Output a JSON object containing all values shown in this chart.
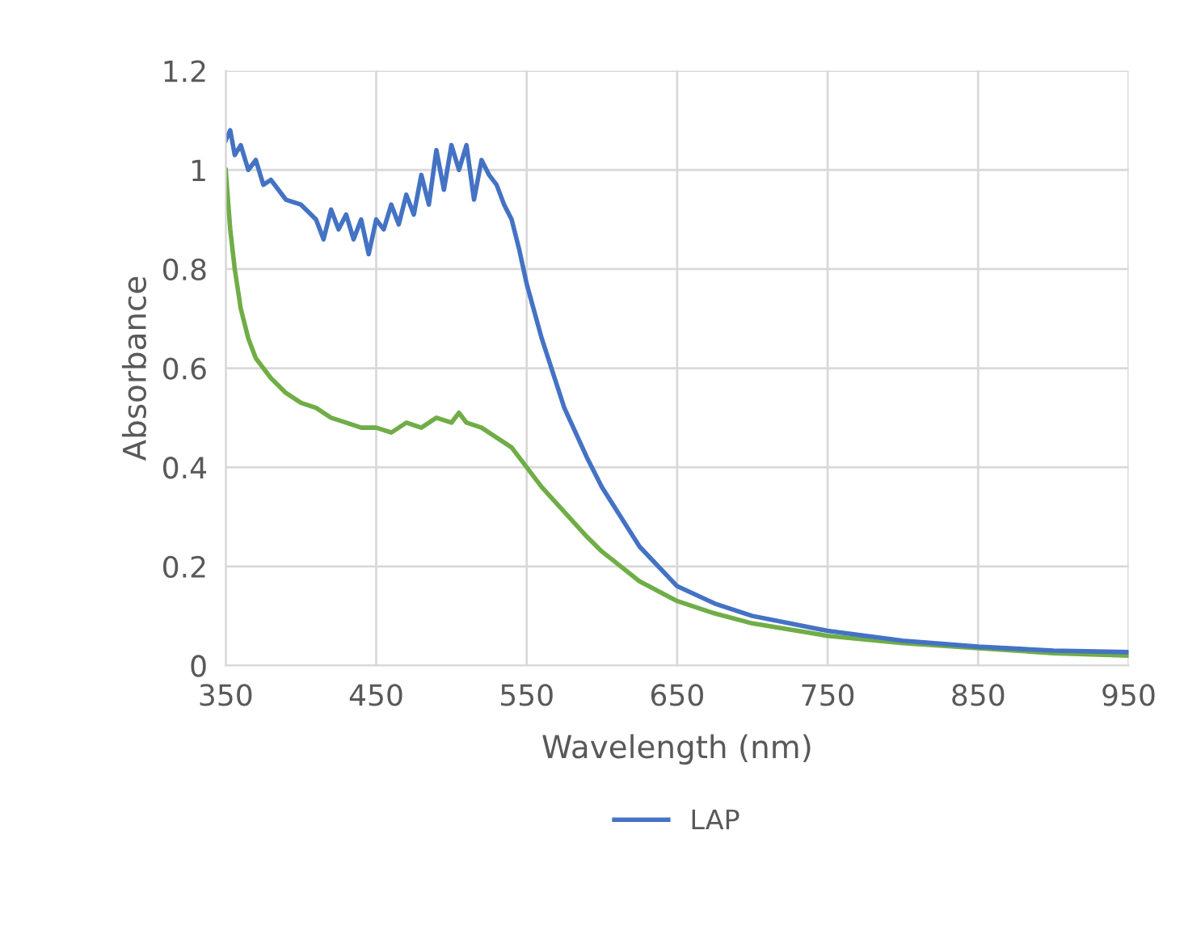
{
  "chart_data": {
    "type": "line",
    "xlabel": "Wavelength (nm)",
    "ylabel": "Absorbance",
    "xlim": [
      350,
      950
    ],
    "xticks": [
      350,
      450,
      550,
      650,
      750,
      850,
      950
    ],
    "ylim": [
      0,
      1.2
    ],
    "yticks": [
      0,
      0.2,
      0.4,
      0.6,
      0.8,
      1,
      1.2
    ],
    "grid": true,
    "legend": "bottom",
    "line_style": "solid",
    "marker": "none",
    "series": [
      {
        "color": "#70ad47",
        "x": [
          350,
          353,
          356,
          360,
          365,
          370,
          375,
          380,
          390,
          400,
          410,
          420,
          430,
          440,
          450,
          460,
          470,
          480,
          490,
          500,
          505,
          510,
          520,
          530,
          540,
          550,
          560,
          575,
          590,
          600,
          625,
          650,
          675,
          700,
          750,
          800,
          850,
          900,
          950
        ],
        "values": [
          1.0,
          0.88,
          0.8,
          0.72,
          0.66,
          0.62,
          0.6,
          0.58,
          0.55,
          0.53,
          0.52,
          0.5,
          0.49,
          0.48,
          0.48,
          0.47,
          0.49,
          0.48,
          0.5,
          0.49,
          0.51,
          0.49,
          0.48,
          0.46,
          0.44,
          0.4,
          0.36,
          0.31,
          0.26,
          0.23,
          0.17,
          0.13,
          0.105,
          0.085,
          0.06,
          0.045,
          0.035,
          0.025,
          0.02
        ]
      },
      {
        "name": "LAP",
        "color": "#4472c4",
        "x": [
          350,
          353,
          356,
          360,
          365,
          370,
          375,
          380,
          390,
          400,
          410,
          415,
          420,
          425,
          430,
          435,
          440,
          445,
          450,
          455,
          460,
          465,
          470,
          475,
          480,
          485,
          490,
          495,
          500,
          505,
          510,
          515,
          520,
          525,
          530,
          535,
          540,
          545,
          550,
          560,
          575,
          590,
          600,
          625,
          650,
          675,
          700,
          750,
          800,
          850,
          900,
          950
        ],
        "values": [
          1.06,
          1.08,
          1.03,
          1.05,
          1.0,
          1.02,
          0.97,
          0.98,
          0.94,
          0.93,
          0.9,
          0.86,
          0.92,
          0.88,
          0.91,
          0.86,
          0.9,
          0.83,
          0.9,
          0.88,
          0.93,
          0.89,
          0.95,
          0.91,
          0.99,
          0.93,
          1.04,
          0.96,
          1.05,
          1.0,
          1.05,
          0.94,
          1.02,
          0.99,
          0.97,
          0.93,
          0.9,
          0.84,
          0.77,
          0.66,
          0.52,
          0.42,
          0.36,
          0.24,
          0.16,
          0.125,
          0.1,
          0.07,
          0.05,
          0.038,
          0.03,
          0.027
        ]
      }
    ]
  }
}
